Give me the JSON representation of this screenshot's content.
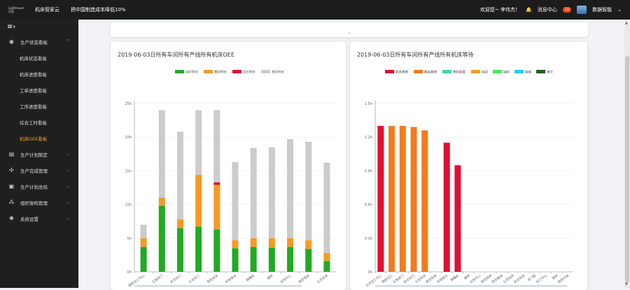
{
  "topbar": {
    "logo_line1": "Lighthouse",
    "logo_line2": "灯塔",
    "brand": "机床管家云",
    "slogan": "把中国制造成本降低10%",
    "greeting": "欢迎您~ 李伟杰！",
    "messages_label": "消息中心",
    "messages_count": "11",
    "user_name": "数据智能"
  },
  "sidebar": {
    "toggle": "≡›",
    "items": [
      {
        "label": "生产状态看板",
        "icon": "dashboard-icon",
        "expanded": true
      },
      {
        "label": "生产计划制定",
        "icon": "plan-icon"
      },
      {
        "label": "生产完成管理",
        "icon": "gear-icon"
      },
      {
        "label": "生产计划总结",
        "icon": "summary-icon"
      },
      {
        "label": "组织架构管理",
        "icon": "org-icon"
      },
      {
        "label": "系统设置",
        "icon": "settings-icon"
      }
    ],
    "subitems": [
      "机床状态看板",
      "机床进度看板",
      "工单进度看板",
      "工序进度看板",
      "综合工时看板",
      "机床OEE看板"
    ],
    "active_sub": "机床OEE看板"
  },
  "collapse_chevron": "⌄",
  "chart_left": {
    "title": "2019-06-03日所有车间所有产线所有机床OEE"
  },
  "chart_right": {
    "title": "2019-06-03日所有车间所有产线所有机床等待"
  },
  "chart_data": [
    {
      "type": "bar",
      "stacked": true,
      "title": "2019-06-03日所有车间所有产线所有机床OEE",
      "categories": [
        "精密加工中心",
        "五轴龙门",
        "卧式加工",
        "立式加工",
        "数控车床",
        "车铣复合",
        "精雕机",
        "磨床",
        "钻攻中心",
        "数控铣床",
        "立式车床"
      ],
      "series": [
        {
          "name": "绿灯时长",
          "color": "#22aa22",
          "values": [
            3.7,
            9.8,
            6.5,
            6.7,
            6.3,
            3.5,
            3.7,
            3.6,
            3.7,
            3.4,
            1.6
          ]
        },
        {
          "name": "黄灯时长",
          "color": "#f79a24",
          "values": [
            1.3,
            1.2,
            1.3,
            7.7,
            6.6,
            1.2,
            1.3,
            1.4,
            1.3,
            1.3,
            1.2
          ]
        },
        {
          "name": "红灯时长",
          "color": "#dd1133",
          "values": [
            0,
            0,
            0,
            0,
            0.4,
            0,
            0,
            0,
            0,
            0,
            0
          ]
        },
        {
          "name": "关灯时长",
          "color": "#cccccc",
          "values": [
            2.0,
            13.0,
            13.0,
            9.6,
            10.7,
            11.6,
            13.4,
            13.5,
            14.7,
            14.6,
            13.4
          ]
        }
      ],
      "ylim": [
        0,
        25
      ],
      "yticks": [
        "0h",
        "5h",
        "10h",
        "15h",
        "20h",
        "25h"
      ],
      "legend": "top"
    },
    {
      "type": "bar",
      "stacked": true,
      "title": "2019-06-03日所有车间所有产线所有机床等待",
      "categories": [
        "立式加工中心",
        "精密加工",
        "五轴龙门",
        "卧式加工",
        "立式车床",
        "数控车床",
        "车铣复合",
        "精雕机",
        "磨床",
        "钻攻中心",
        "数控铣床",
        "数控磨床",
        "立式钻床",
        "卧式车床",
        "龙门铣",
        "加工中心",
        "镗床",
        "数控冲床"
      ],
      "series": [
        {
          "name": "机床故障",
          "color": "#dd1133",
          "values": [
            1.3,
            0,
            0,
            0,
            0,
            0,
            1.15,
            0.95,
            0,
            0,
            0,
            0,
            0,
            0,
            0,
            0,
            0,
            0
          ]
        },
        {
          "name": "模具故障",
          "color": "#f07c1e",
          "values": [
            0,
            1.3,
            1.3,
            1.29,
            1.26,
            0,
            0,
            0,
            0,
            0,
            0,
            0,
            0,
            0,
            0,
            0,
            0,
            0
          ]
        },
        {
          "name": "来料质量",
          "color": "#33ddaa",
          "values": [
            0,
            0,
            0,
            0,
            0,
            0,
            0,
            0,
            0,
            0,
            0,
            0,
            0,
            0,
            0,
            0,
            0,
            0
          ]
        },
        {
          "name": "调试",
          "color": "#f79a24",
          "values": [
            0,
            0,
            0,
            0,
            0,
            0,
            0,
            0,
            0,
            0,
            0,
            0,
            0,
            0,
            0,
            0,
            0,
            0
          ]
        },
        {
          "name": "缺料",
          "color": "#44ee44",
          "values": [
            0,
            0,
            0,
            0,
            0,
            0,
            0,
            0,
            0,
            0,
            0,
            0,
            0,
            0,
            0,
            0,
            0,
            0
          ]
        },
        {
          "name": "缺电",
          "color": "#22ccff",
          "values": [
            0,
            0,
            0,
            0,
            0,
            0,
            0,
            0,
            0,
            0,
            0,
            0,
            0,
            0,
            0,
            0,
            0,
            0
          ]
        },
        {
          "name": "其它",
          "color": "#116611",
          "values": [
            0,
            0,
            0,
            0,
            0,
            0,
            0,
            0,
            0,
            0,
            0,
            0,
            0,
            0,
            0,
            0,
            0,
            0
          ]
        }
      ],
      "ylim": [
        0,
        1.5
      ],
      "yticks": [
        "0h",
        "0.3h",
        "0.6h",
        "0.9h",
        "1.2h",
        "1.5h"
      ],
      "legend": "top"
    }
  ]
}
